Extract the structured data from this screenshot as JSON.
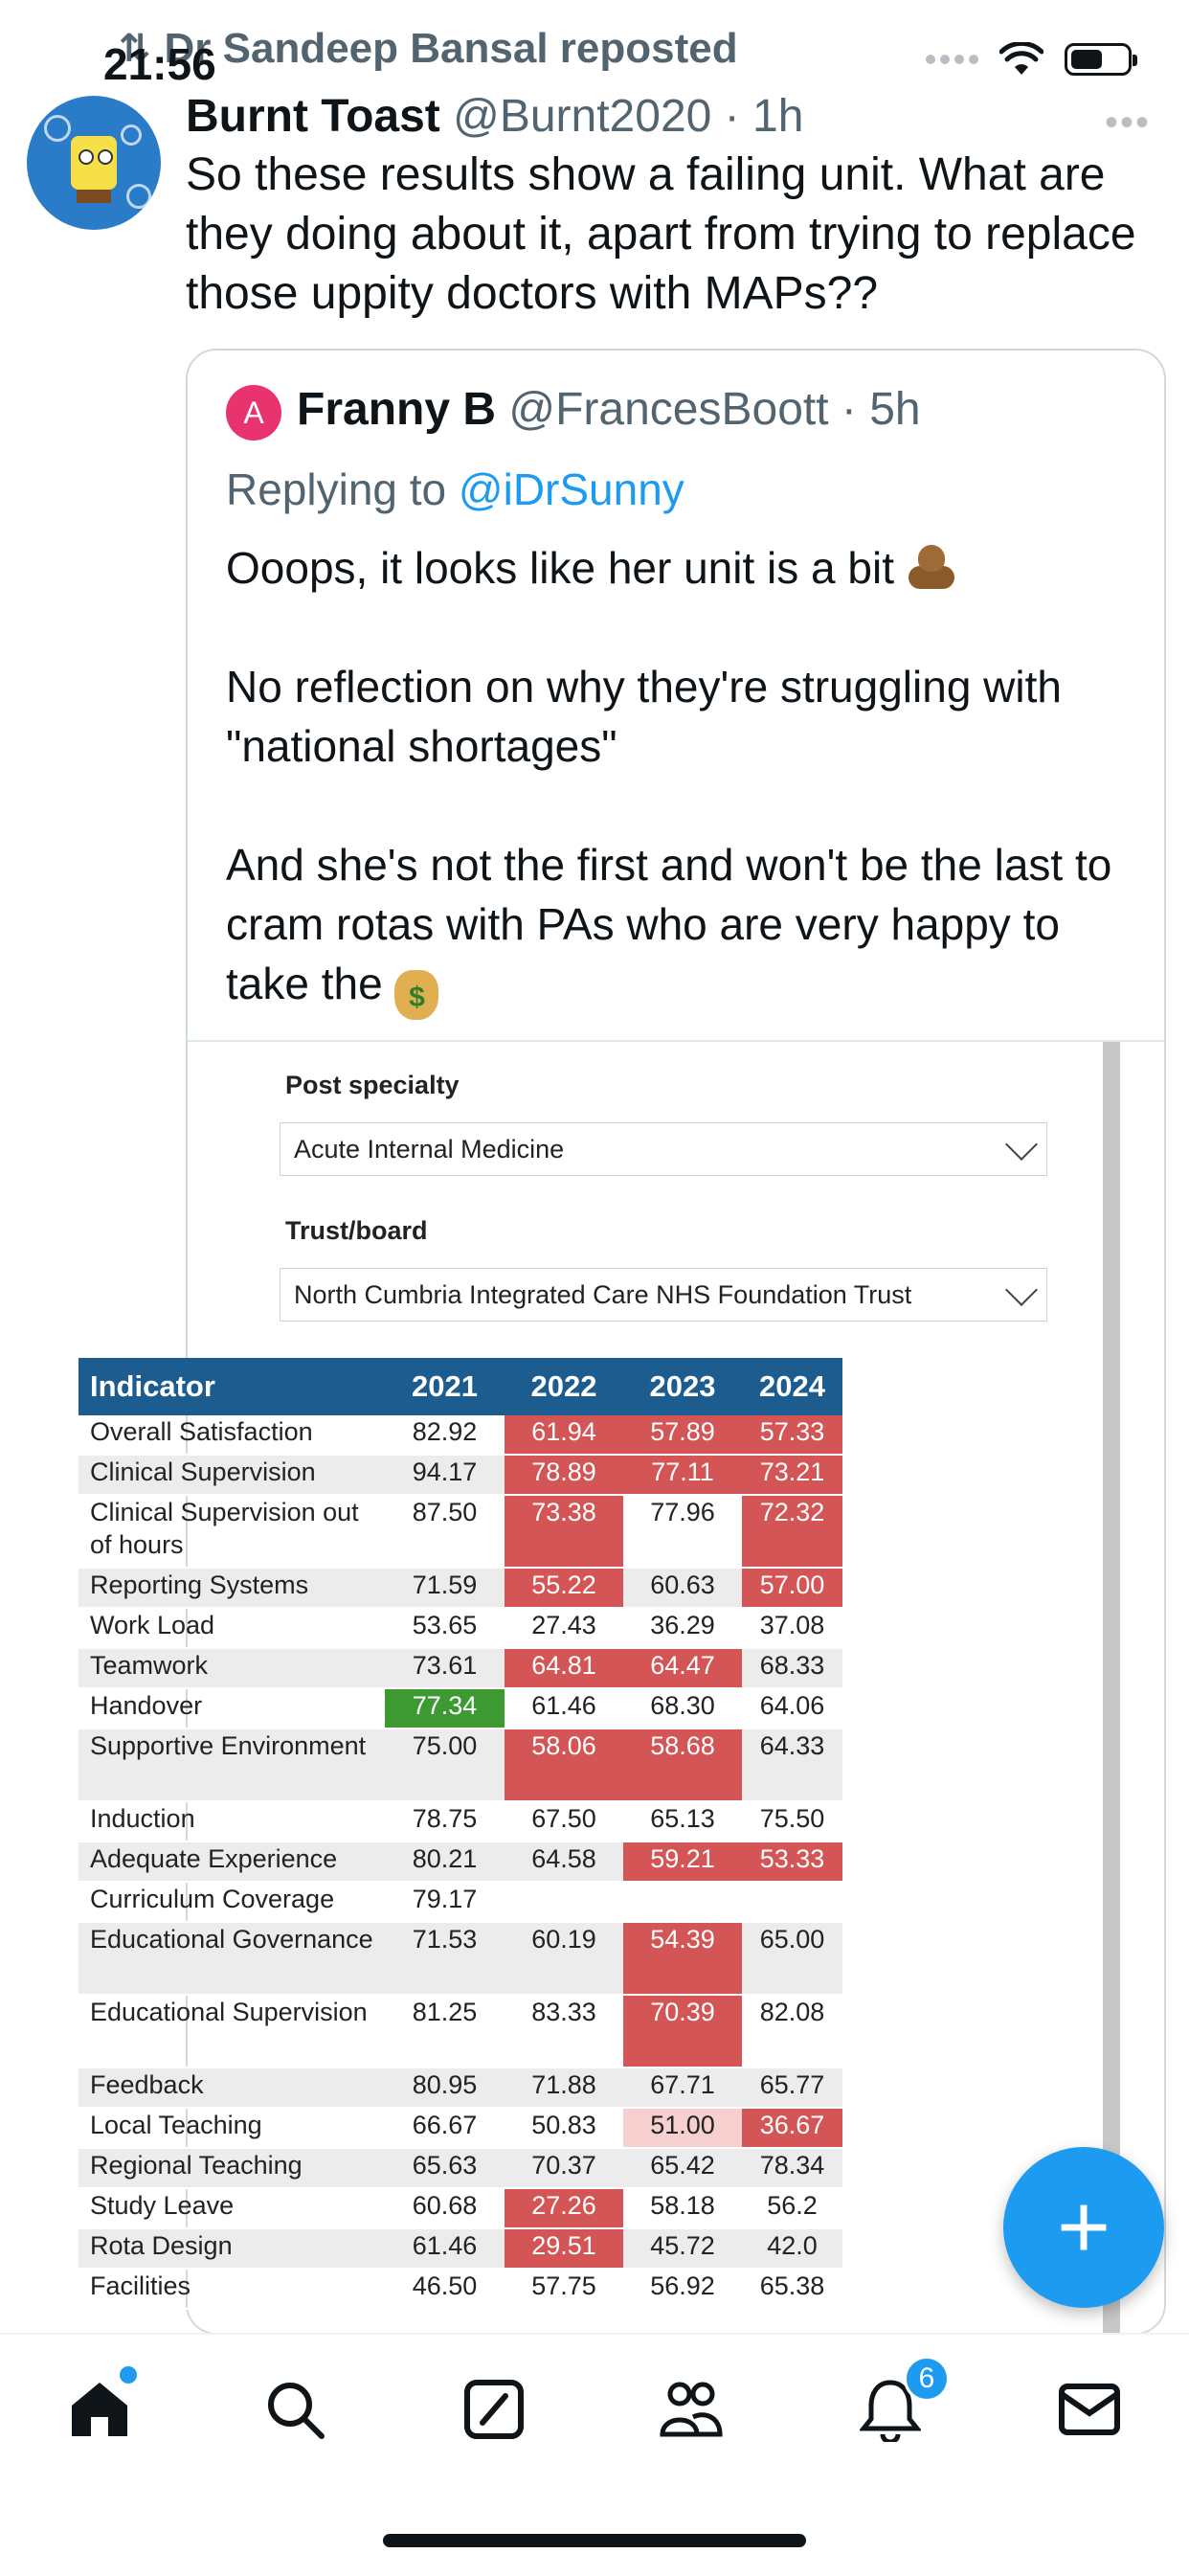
{
  "status_bar": {
    "time": "21:56"
  },
  "repost": {
    "label": "Dr Sandeep Bansal reposted"
  },
  "tweet": {
    "author_name": "Burnt Toast",
    "author_meta": " @Burnt2020 · 1h",
    "text": "So these results show a failing unit. What are they doing about it, apart from trying to replace those uppity doctors with MAPs??"
  },
  "quote": {
    "avatar_letter": "A",
    "author_name": "Franny B",
    "author_meta": " @FrancesBoott · 5h",
    "replying_prefix": "Replying to ",
    "replying_handle": "@iDrSunny",
    "para1": "Ooops, it looks like her unit is a bit ",
    "para2": "No reflection on why they're struggling with \"national shortages\"",
    "para3": "And she's not the first and won't be the last to cram rotas with PAs who are very happy to take the ",
    "emoji1_icon": "pile-of-poo-emoji",
    "emoji2_icon": "money-bag-emoji",
    "emoji2_glyph": "$"
  },
  "embed": {
    "post_specialty_label": "Post specialty",
    "post_specialty_value": "Acute Internal Medicine",
    "trust_label": "Trust/board",
    "trust_value": "North Cumbria Integrated Care NHS Foundation Trust",
    "table": {
      "headers": [
        "Indicator",
        "2021",
        "2022",
        "2023",
        "2024"
      ],
      "rows": [
        {
          "label": "Overall Satisfaction",
          "values": [
            "82.92",
            "61.94",
            "57.89",
            "57.33"
          ]
        },
        {
          "label": "Clinical Supervision",
          "values": [
            "94.17",
            "78.89",
            "77.11",
            "73.21"
          ]
        },
        {
          "label": "Clinical Supervision out of hours",
          "values": [
            "87.50",
            "73.38",
            "77.96",
            "72.32"
          ]
        },
        {
          "label": "Reporting Systems",
          "values": [
            "71.59",
            "55.22",
            "60.63",
            "57.00"
          ]
        },
        {
          "label": "Work Load",
          "values": [
            "53.65",
            "27.43",
            "36.29",
            "37.08"
          ]
        },
        {
          "label": "Teamwork",
          "values": [
            "73.61",
            "64.81",
            "64.47",
            "68.33"
          ]
        },
        {
          "label": "Handover",
          "values": [
            "77.34",
            "61.46",
            "68.30",
            "64.06"
          ]
        },
        {
          "label": "Supportive Environment",
          "values": [
            "75.00",
            "58.06",
            "58.68",
            "64.33"
          ]
        },
        {
          "label": "Induction",
          "values": [
            "78.75",
            "67.50",
            "65.13",
            "75.50"
          ]
        },
        {
          "label": "Adequate Experience",
          "values": [
            "80.21",
            "64.58",
            "59.21",
            "53.33"
          ]
        },
        {
          "label": "Curriculum Coverage",
          "values": [
            "79.17",
            "",
            "",
            ""
          ]
        },
        {
          "label": "Educational Governance",
          "values": [
            "71.53",
            "60.19",
            "54.39",
            "65.00"
          ]
        },
        {
          "label": "Educational Supervision",
          "values": [
            "81.25",
            "83.33",
            "70.39",
            "82.08"
          ]
        },
        {
          "label": "Feedback",
          "values": [
            "80.95",
            "71.88",
            "67.71",
            "65.77"
          ]
        },
        {
          "label": "Local Teaching",
          "values": [
            "66.67",
            "50.83",
            "51.00",
            "36.67"
          ]
        },
        {
          "label": "Regional Teaching",
          "values": [
            "65.63",
            "70.37",
            "65.42",
            "78.34"
          ]
        },
        {
          "label": "Study Leave",
          "values": [
            "60.68",
            "27.26",
            "58.18",
            "56.2"
          ]
        },
        {
          "label": "Rota Design",
          "values": [
            "61.46",
            "29.51",
            "45.72",
            "42.0"
          ]
        },
        {
          "label": "Facilities",
          "values": [
            "46.50",
            "57.75",
            "56.92",
            "65.38"
          ]
        }
      ],
      "colors": {
        "red": "#d45555",
        "pink": "#f6cfcf",
        "green": "#3d9a33",
        "header": "#1d5c8e"
      }
    }
  },
  "fab": {
    "icon": "plus-icon",
    "label": "+"
  },
  "nav": {
    "items": [
      "home-icon",
      "search-icon",
      "grok-icon",
      "communities-icon",
      "notifications-icon",
      "messages-icon"
    ],
    "notifications_badge": "6"
  },
  "theme": {
    "accent": "#1d9bf0",
    "text": "#0f1419",
    "muted": "#536471"
  }
}
